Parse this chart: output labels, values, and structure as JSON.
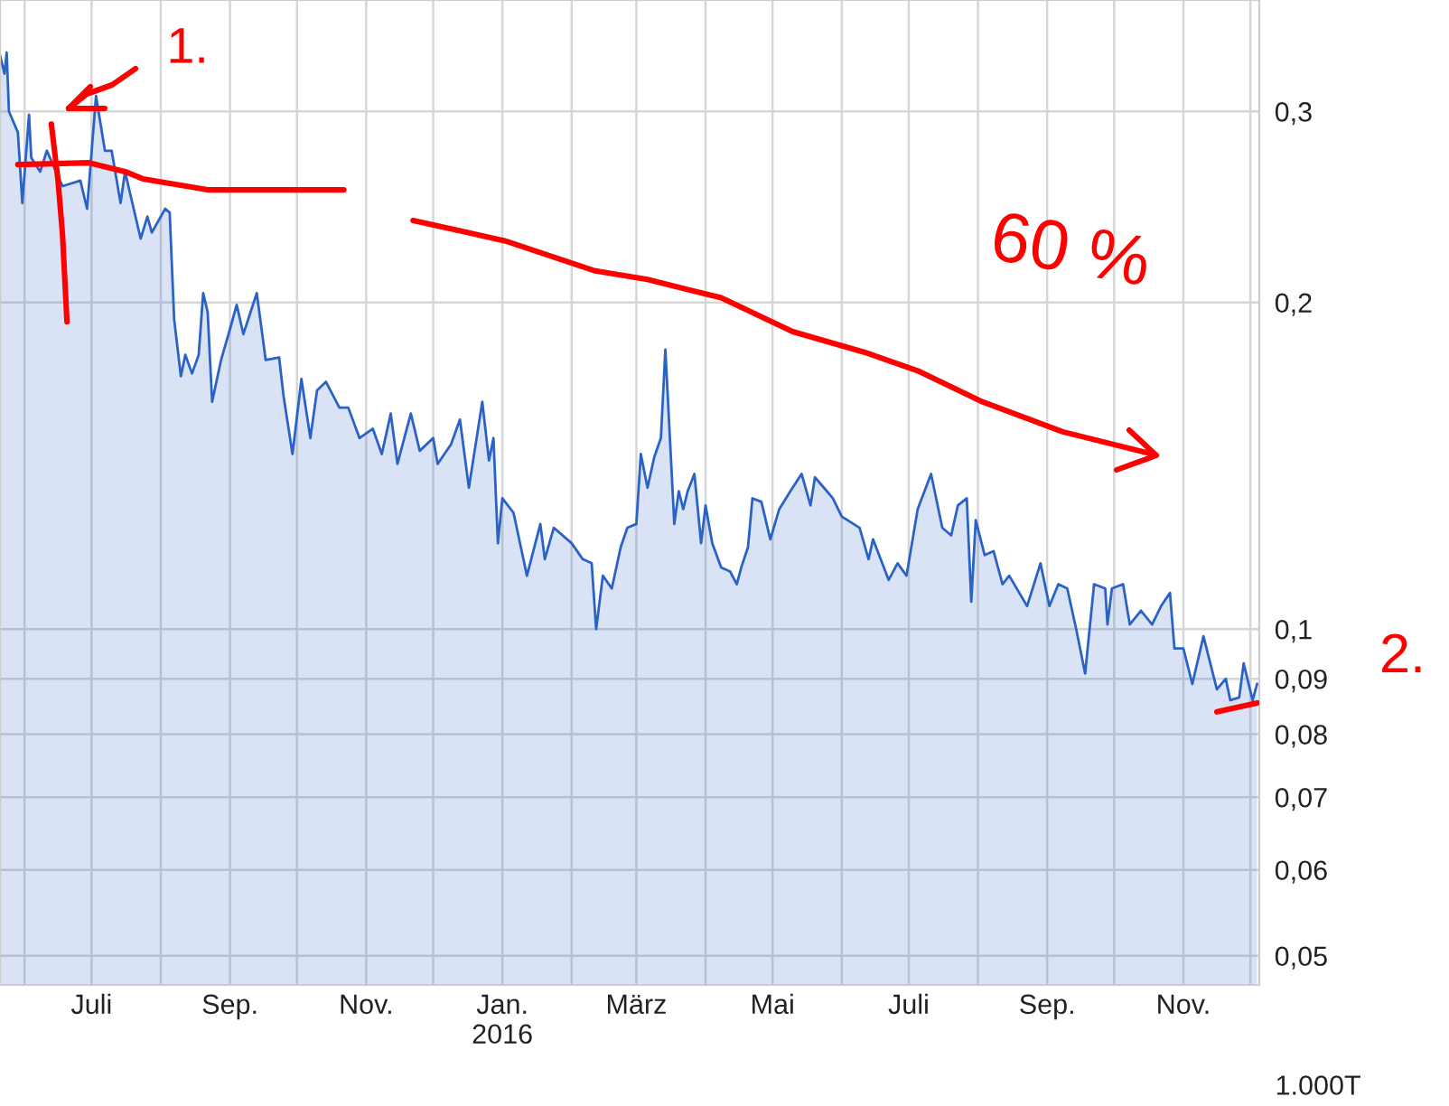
{
  "chart_data": {
    "type": "area",
    "log": "y",
    "grid": true,
    "marker": "none",
    "line_style": "solid",
    "xlim": [
      "2015-05-21",
      "2016-12-05"
    ],
    "ylim": [
      0.047,
      0.38
    ],
    "xticks": [
      {
        "value": "2015-06-01",
        "label": null
      },
      {
        "value": "2015-07-01",
        "label": "Juli"
      },
      {
        "value": "2015-08-01",
        "label": null
      },
      {
        "value": "2015-09-01",
        "label": "Sep."
      },
      {
        "value": "2015-10-01",
        "label": null
      },
      {
        "value": "2015-11-01",
        "label": "Nov."
      },
      {
        "value": "2015-12-01",
        "label": null
      },
      {
        "value": "2016-01-01",
        "label": "Jan.\n2016"
      },
      {
        "value": "2016-02-01",
        "label": null
      },
      {
        "value": "2016-03-01",
        "label": "März"
      },
      {
        "value": "2016-04-01",
        "label": null
      },
      {
        "value": "2016-05-01",
        "label": "Mai"
      },
      {
        "value": "2016-06-01",
        "label": null
      },
      {
        "value": "2016-07-01",
        "label": "Juli"
      },
      {
        "value": "2016-08-01",
        "label": null
      },
      {
        "value": "2016-09-01",
        "label": "Sep."
      },
      {
        "value": "2016-10-01",
        "label": null
      },
      {
        "value": "2016-11-01",
        "label": "Nov."
      },
      {
        "value": "2016-12-01",
        "label": null
      }
    ],
    "yticks": [
      {
        "value": 0.05,
        "label": "0,05"
      },
      {
        "value": 0.06,
        "label": "0,06"
      },
      {
        "value": 0.07,
        "label": "0,07"
      },
      {
        "value": 0.08,
        "label": "0,08"
      },
      {
        "value": 0.09,
        "label": "0,09"
      },
      {
        "value": 0.1,
        "label": "0,1"
      },
      {
        "value": 0.2,
        "label": "0,2"
      },
      {
        "value": 0.3,
        "label": "0,3"
      }
    ],
    "annotations": [
      "1.",
      "60 %",
      "2.",
      "1.000T"
    ],
    "series": [
      {
        "color": "#2a62c6",
        "x": [
          "2015-05-21",
          "2015-05-23",
          "2015-05-24",
          "2015-05-25",
          "2015-05-29",
          "2015-05-31",
          "2015-06-03",
          "2015-06-04",
          "2015-06-08",
          "2015-06-11",
          "2015-06-14",
          "2015-06-18",
          "2015-06-26",
          "2015-06-29",
          "2015-07-03",
          "2015-07-07",
          "2015-07-10",
          "2015-07-14",
          "2015-07-16",
          "2015-07-23",
          "2015-07-26",
          "2015-07-28",
          "2015-08-03",
          "2015-08-05",
          "2015-08-07",
          "2015-08-10",
          "2015-08-12",
          "2015-08-15",
          "2015-08-18",
          "2015-08-20",
          "2015-08-22",
          "2015-08-24",
          "2015-08-28",
          "2015-09-01",
          "2015-09-04",
          "2015-09-07",
          "2015-09-13",
          "2015-09-17",
          "2015-09-23",
          "2015-09-25",
          "2015-09-29",
          "2015-10-03",
          "2015-10-07",
          "2015-10-10",
          "2015-10-14",
          "2015-10-20",
          "2015-10-24",
          "2015-10-29",
          "2015-11-04",
          "2015-11-08",
          "2015-11-12",
          "2015-11-15",
          "2015-11-21",
          "2015-11-25",
          "2015-12-01",
          "2015-12-03",
          "2015-12-09",
          "2015-12-13",
          "2015-12-17",
          "2015-12-23",
          "2015-12-26",
          "2015-12-28",
          "2015-12-30",
          "2016-01-01",
          "2016-01-06",
          "2016-01-12",
          "2016-01-18",
          "2016-01-20",
          "2016-01-24",
          "2016-02-01",
          "2016-02-06",
          "2016-02-10",
          "2016-02-12",
          "2016-02-15",
          "2016-02-19",
          "2016-02-23",
          "2016-02-26",
          "2016-03-01",
          "2016-03-03",
          "2016-03-06",
          "2016-03-09",
          "2016-03-12",
          "2016-03-14",
          "2016-03-18",
          "2016-03-20",
          "2016-03-22",
          "2016-03-24",
          "2016-03-27",
          "2016-03-30",
          "2016-04-01",
          "2016-04-04",
          "2016-04-08",
          "2016-04-12",
          "2016-04-15",
          "2016-04-17",
          "2016-04-20",
          "2016-04-22",
          "2016-04-26",
          "2016-04-30",
          "2016-05-04",
          "2016-05-09",
          "2016-05-14",
          "2016-05-18",
          "2016-05-20",
          "2016-05-24",
          "2016-05-28",
          "2016-06-01",
          "2016-06-09",
          "2016-06-13",
          "2016-06-15",
          "2016-06-22",
          "2016-06-26",
          "2016-06-30",
          "2016-07-05",
          "2016-07-11",
          "2016-07-16",
          "2016-07-20",
          "2016-07-23",
          "2016-07-27",
          "2016-07-29",
          "2016-07-31",
          "2016-08-04",
          "2016-08-08",
          "2016-08-12",
          "2016-08-15",
          "2016-08-23",
          "2016-08-29",
          "2016-09-02",
          "2016-09-06",
          "2016-09-10",
          "2016-09-14",
          "2016-09-18",
          "2016-09-22",
          "2016-09-27",
          "2016-09-28",
          "2016-09-30",
          "2016-10-05",
          "2016-10-08",
          "2016-10-13",
          "2016-10-18",
          "2016-10-22",
          "2016-10-26",
          "2016-10-28",
          "2016-11-01",
          "2016-11-05",
          "2016-11-10",
          "2016-11-16",
          "2016-11-20",
          "2016-11-22",
          "2016-11-26",
          "2016-11-28",
          "2016-12-02",
          "2016-12-04"
        ],
        "values": [
          0.338,
          0.325,
          0.34,
          0.3,
          0.287,
          0.247,
          0.298,
          0.272,
          0.264,
          0.276,
          0.267,
          0.256,
          0.259,
          0.244,
          0.31,
          0.276,
          0.276,
          0.247,
          0.264,
          0.229,
          0.24,
          0.232,
          0.244,
          0.242,
          0.193,
          0.171,
          0.179,
          0.172,
          0.179,
          0.204,
          0.196,
          0.162,
          0.177,
          0.189,
          0.199,
          0.187,
          0.204,
          0.177,
          0.178,
          0.164,
          0.145,
          0.17,
          0.15,
          0.166,
          0.169,
          0.16,
          0.16,
          0.15,
          0.153,
          0.145,
          0.158,
          0.142,
          0.158,
          0.146,
          0.15,
          0.142,
          0.148,
          0.156,
          0.135,
          0.162,
          0.143,
          0.15,
          0.12,
          0.132,
          0.128,
          0.112,
          0.125,
          0.116,
          0.124,
          0.12,
          0.116,
          0.115,
          0.1,
          0.112,
          0.109,
          0.119,
          0.124,
          0.125,
          0.145,
          0.135,
          0.144,
          0.15,
          0.181,
          0.125,
          0.134,
          0.129,
          0.134,
          0.139,
          0.12,
          0.13,
          0.12,
          0.114,
          0.113,
          0.11,
          0.114,
          0.119,
          0.132,
          0.131,
          0.121,
          0.129,
          0.134,
          0.139,
          0.13,
          0.138,
          0.135,
          0.132,
          0.127,
          0.124,
          0.116,
          0.121,
          0.111,
          0.115,
          0.112,
          0.129,
          0.139,
          0.124,
          0.122,
          0.13,
          0.132,
          0.106,
          0.126,
          0.117,
          0.118,
          0.11,
          0.112,
          0.105,
          0.115,
          0.105,
          0.11,
          0.109,
          0.1,
          0.091,
          0.11,
          0.109,
          0.101,
          0.109,
          0.11,
          0.101,
          0.104,
          0.101,
          0.105,
          0.108,
          0.096,
          0.096,
          0.089,
          0.0985,
          0.088,
          0.09,
          0.086,
          0.0865,
          0.093,
          0.086,
          0.089
        ]
      },
      {
        "type": "line",
        "color": "#ff0000",
        "x": [
          "2015-05-29",
          "2015-06-30",
          "2015-07-16",
          "2015-07-24",
          "2015-08-22",
          "2015-10-22"
        ],
        "values": [
          0.268,
          0.269,
          0.264,
          0.26,
          0.254,
          0.254
        ]
      },
      {
        "type": "line",
        "color": "#ff0000",
        "x": [
          "2015-06-13",
          "2015-06-16",
          "2015-06-18",
          "2015-06-20"
        ],
        "values": [
          0.292,
          0.259,
          0.231,
          0.192
        ]
      },
      {
        "type": "line",
        "color": "#ff0000",
        "x": [
          "2015-11-22",
          "2016-01-02",
          "2016-02-11",
          "2016-03-06",
          "2016-04-08",
          "2016-05-10",
          "2016-06-11",
          "2016-07-05",
          "2016-08-03",
          "2016-09-08",
          "2016-10-18"
        ],
        "values": [
          0.238,
          0.228,
          0.214,
          0.21,
          0.202,
          0.188,
          0.18,
          0.173,
          0.162,
          0.152,
          0.145
        ]
      },
      {
        "type": "line",
        "color": "#ff0000",
        "x": [
          "2016-11-16",
          "2016-12-04"
        ],
        "values": [
          0.0839,
          0.0855
        ]
      }
    ]
  }
}
